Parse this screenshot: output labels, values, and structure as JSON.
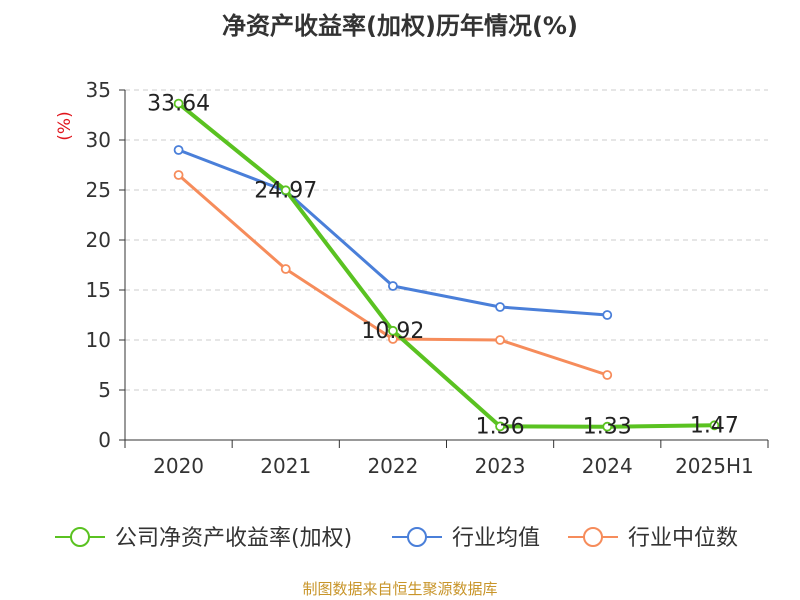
{
  "chart_data": {
    "type": "line",
    "title": "净资产收益率(加权)历年情况(%)",
    "ylabel": "(%)",
    "categories": [
      "2020",
      "2021",
      "2022",
      "2023",
      "2024",
      "2025H1"
    ],
    "ylim": [
      0,
      35
    ],
    "yticks": [
      0,
      5,
      10,
      15,
      20,
      25,
      30,
      35
    ],
    "grid": true,
    "legend_position": "bottom",
    "series": [
      {
        "name": "公司净资产收益率(加权)",
        "color": "#5ac221",
        "values": [
          33.64,
          24.97,
          10.92,
          1.36,
          1.33,
          1.47
        ],
        "labels": [
          "33.64",
          "24.97",
          "10.92",
          "1.36",
          "1.33",
          "1.47"
        ]
      },
      {
        "name": "行业均值",
        "color": "#4a7fd9",
        "values": [
          29.0,
          24.9,
          15.4,
          13.3,
          12.5,
          null
        ]
      },
      {
        "name": "行业中位数",
        "color": "#f68c5b",
        "values": [
          26.5,
          17.1,
          10.1,
          10.0,
          6.5,
          null
        ]
      }
    ]
  },
  "source_note": "制图数据来自恒生聚源数据库",
  "colors": {
    "axis": "#333333",
    "grid": "#cccccc",
    "ylabel": "#e0151c"
  }
}
